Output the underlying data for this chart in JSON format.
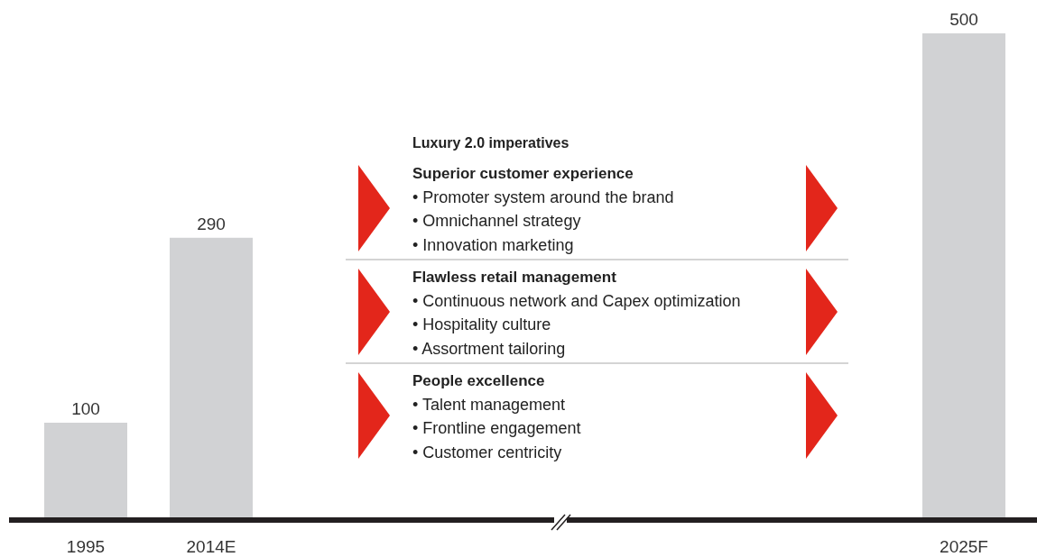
{
  "chart_data": {
    "type": "bar",
    "categories": [
      "1995",
      "2014E",
      null,
      null,
      null,
      null,
      null,
      "2025F"
    ],
    "values": [
      100,
      290,
      null,
      null,
      null,
      null,
      null,
      500
    ],
    "color": "#d1d2d4",
    "data_labels": true,
    "annotations": [
      "Luxury 2.0 imperatives",
      "Superior customer experience",
      "• Promoter system around the brand",
      "• Omnichannel strategy",
      "• Innovation marketing",
      "Flawless retail management",
      "• Continuous network and Capex optimization",
      "• Hospitality culture",
      "• Assortment tailoring",
      "People excellence",
      "• Talent management",
      "• Frontline engagement",
      "• Customer centricity"
    ]
  }
}
